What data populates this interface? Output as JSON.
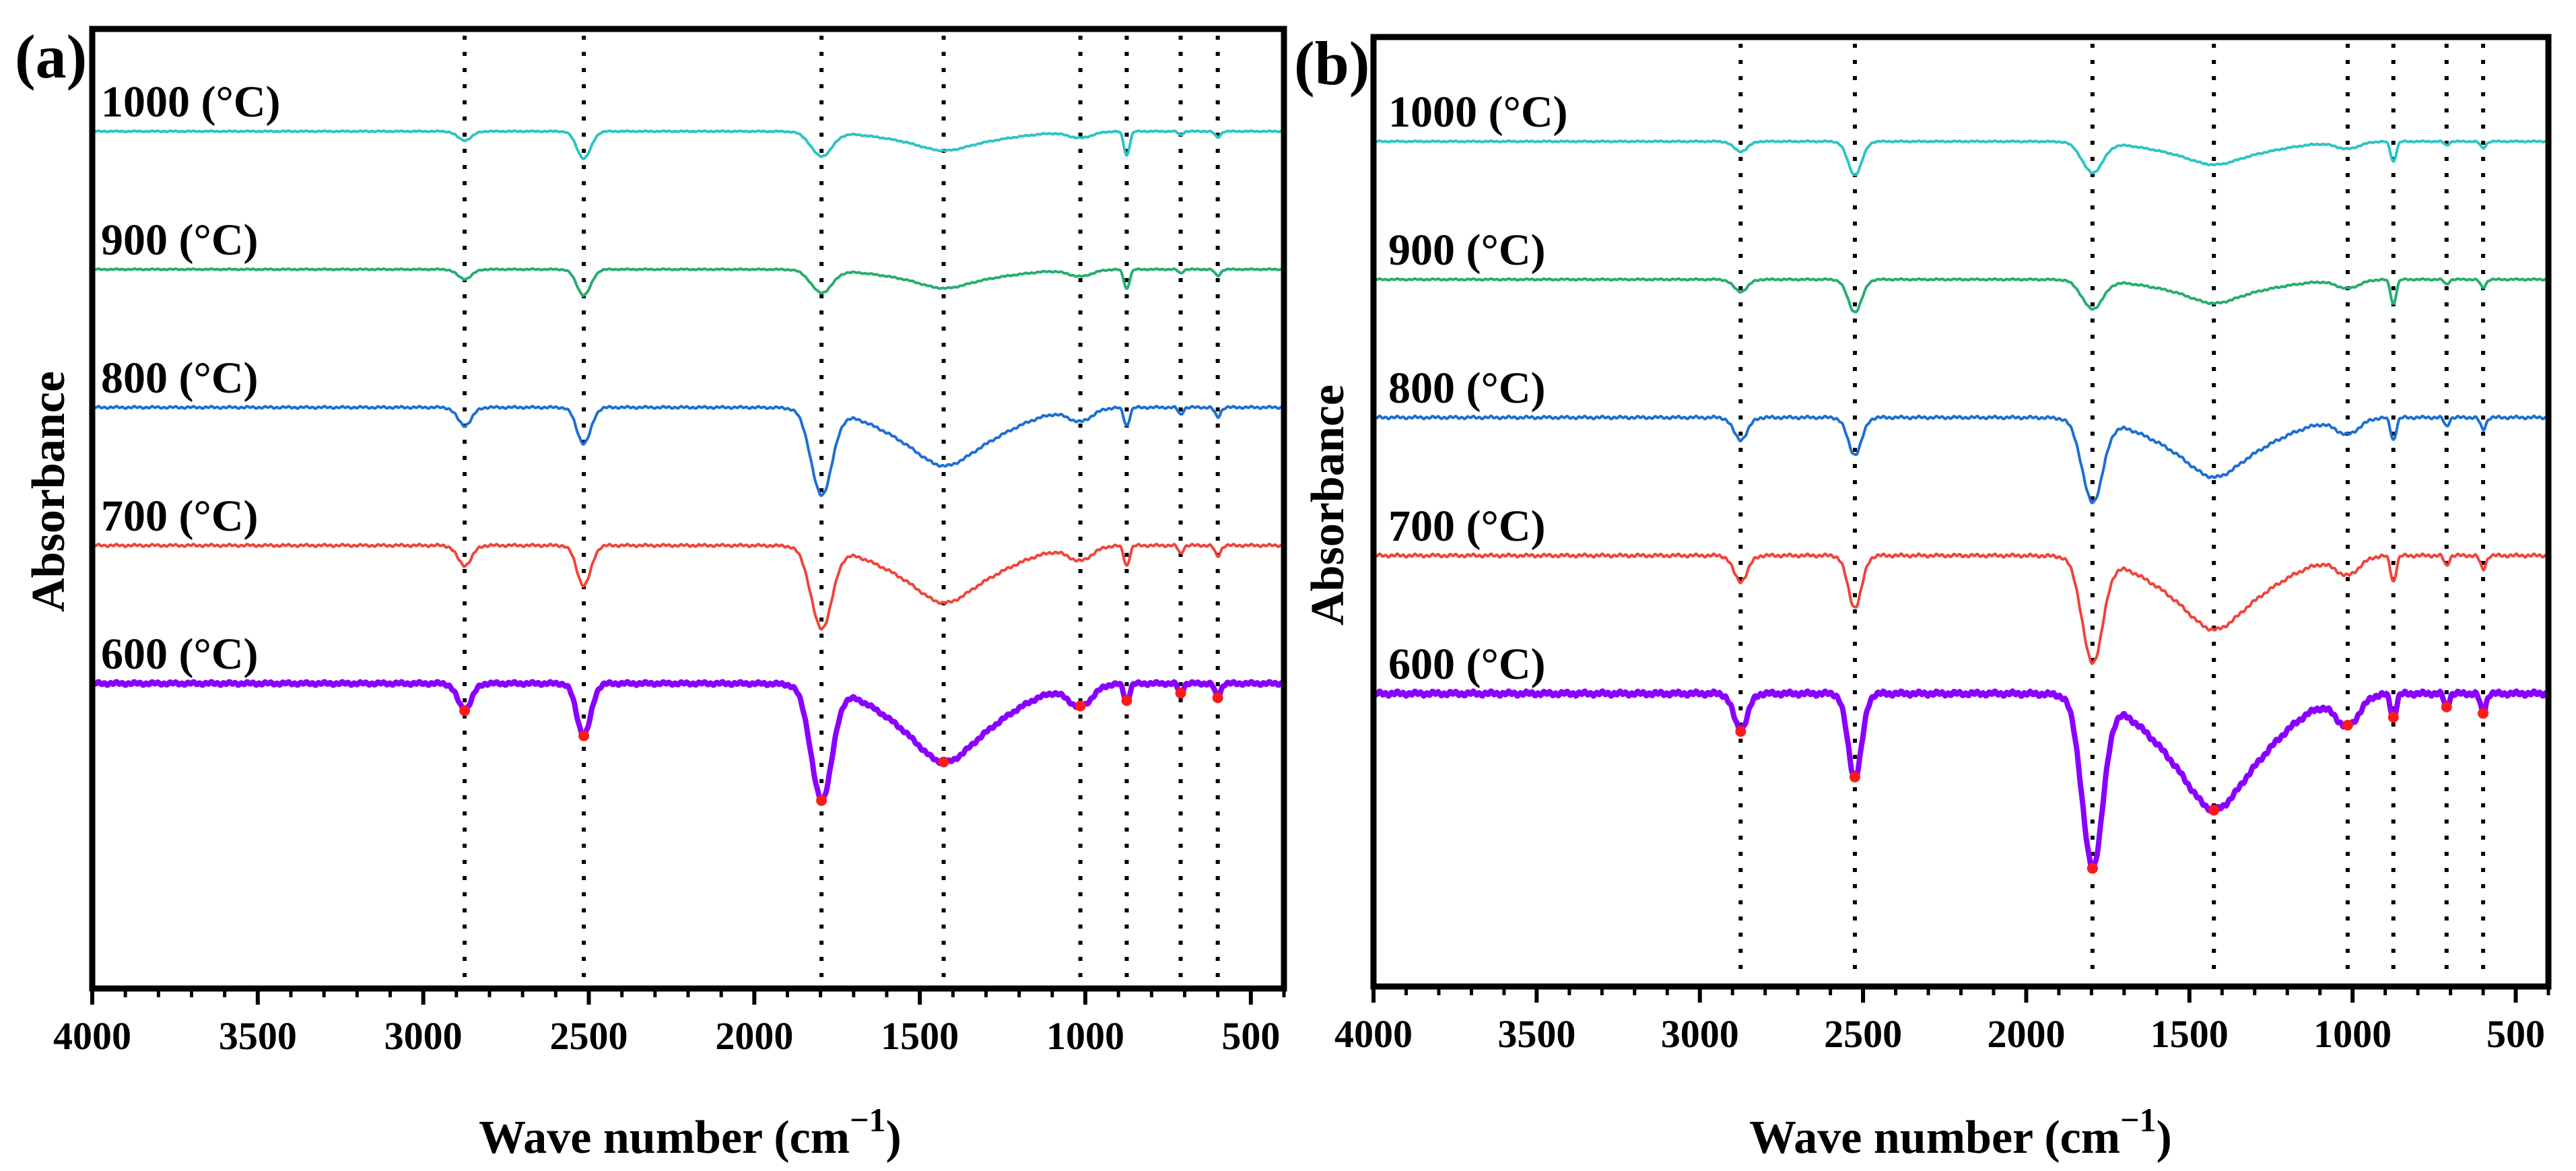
{
  "chart_data": [
    {
      "type": "line",
      "panel_label": "(a)",
      "xlabel": "Wave number (cm",
      "xlabel_sup": "−1",
      "ylabel": "Absorbance",
      "xlim": [
        4000,
        400
      ],
      "x_reversed": true,
      "x_ticks": [
        4000,
        3500,
        3000,
        2500,
        2000,
        1500,
        1000,
        500
      ],
      "y_ticks_shown": false,
      "grid": false,
      "legend": "inline labels above each trace",
      "vertical_guides_cm1": [
        2875,
        2515,
        1797,
        1428,
        1015,
        875,
        712,
        600
      ],
      "peak_markers_cm1": [
        2875,
        2515,
        1797,
        1428,
        1015,
        875,
        712,
        600
      ],
      "series": [
        {
          "name": "1000 (°C)",
          "color": "#2ec4c4",
          "style": "thin",
          "offset": 4,
          "depth": 0.28,
          "shape": [
            0.15,
            0.45,
            0.4,
            0.1,
            0.1,
            0.4,
            0.06,
            0.1
          ]
        },
        {
          "name": "900 (°C)",
          "color": "#27ad6f",
          "style": "thin",
          "offset": 3,
          "depth": 0.3,
          "shape": [
            0.15,
            0.4,
            0.35,
            0.1,
            0.1,
            0.3,
            0.06,
            0.1
          ]
        },
        {
          "name": "800 (°C)",
          "color": "#1d6fd1",
          "style": "thin",
          "offset": 2,
          "depth": 0.56,
          "shape": [
            0.15,
            0.3,
            0.7,
            0.1,
            0.1,
            0.15,
            0.06,
            0.08
          ]
        },
        {
          "name": "700 (°C)",
          "color": "#f0443a",
          "style": "thin",
          "offset": 1,
          "depth": 0.62,
          "shape": [
            0.15,
            0.3,
            0.6,
            0.1,
            0.1,
            0.15,
            0.06,
            0.08
          ]
        },
        {
          "name": "600 (°C)",
          "color": "#8a00ff",
          "style": "thick",
          "offset": 0,
          "depth": 0.8,
          "shape": [
            0.15,
            0.3,
            0.65,
            0.1,
            0.12,
            0.1,
            0.06,
            0.08
          ]
        }
      ]
    },
    {
      "type": "line",
      "panel_label": "(b)",
      "xlabel": "Wave number (cm",
      "xlabel_sup": "−1",
      "ylabel": "Absorbance",
      "xlim": [
        4000,
        400
      ],
      "x_reversed": true,
      "x_ticks": [
        4000,
        3500,
        3000,
        2500,
        2000,
        1500,
        1000,
        500
      ],
      "y_ticks_shown": false,
      "grid": false,
      "legend": "inline labels above each trace",
      "vertical_guides_cm1": [
        2875,
        2525,
        1797,
        1425,
        1015,
        875,
        712,
        600
      ],
      "peak_markers_cm1": [
        2875,
        2525,
        1797,
        1425,
        1015,
        875,
        712,
        600
      ],
      "series": [
        {
          "name": "1000 (°C)",
          "color": "#2ec4c4",
          "style": "thin",
          "offset": 4,
          "depth": 0.28,
          "shape": [
            0.15,
            0.5,
            0.45,
            0.1,
            0.1,
            0.3,
            0.06,
            0.1
          ]
        },
        {
          "name": "900 (°C)",
          "color": "#27ad6f",
          "style": "thin",
          "offset": 3,
          "depth": 0.34,
          "shape": [
            0.15,
            0.4,
            0.35,
            0.1,
            0.1,
            0.3,
            0.06,
            0.1
          ]
        },
        {
          "name": "800 (°C)",
          "color": "#1d6fd1",
          "style": "thin",
          "offset": 2,
          "depth": 0.62,
          "shape": [
            0.15,
            0.25,
            0.55,
            0.1,
            0.1,
            0.15,
            0.06,
            0.08
          ]
        },
        {
          "name": "700 (°C)",
          "color": "#f0443a",
          "style": "thin",
          "offset": 1,
          "depth": 0.72,
          "shape": [
            0.15,
            0.3,
            0.6,
            0.1,
            0.1,
            0.15,
            0.06,
            0.08
          ]
        },
        {
          "name": "600 (°C)",
          "color": "#8a00ff",
          "style": "thick",
          "offset": 0,
          "depth": 1.0,
          "shape": [
            0.15,
            0.35,
            0.7,
            0.1,
            0.12,
            0.1,
            0.06,
            0.08
          ]
        }
      ]
    }
  ]
}
